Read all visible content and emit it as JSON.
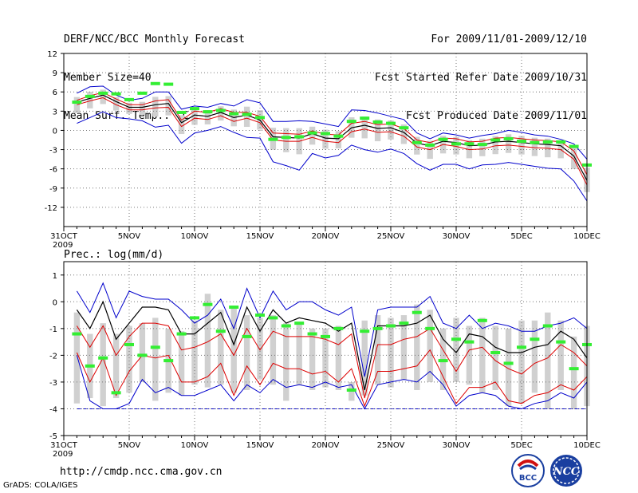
{
  "header": {
    "title": "DERF/NCC/BCC Monthly Forecast",
    "member_size": "Member Size=40",
    "variable": "Mean Surf. Temp.: °C",
    "forecast_period": "For 2009/11/01-2009/12/10",
    "started_refer_date": "Fcst Started Refer Date 2009/10/31",
    "produced_date": "Fcst Produced Date 2009/11/01"
  },
  "footer": {
    "url": "http://cmdp.ncc.cma.gov.cn",
    "software": "GrADS: COLA/IGES",
    "logo_left": "BCC",
    "logo_right": "NCC"
  },
  "colors": {
    "box": "#d0d0d0",
    "envelope": "#0000cc",
    "quartile": "#dd0000",
    "median": "#000000",
    "observed": "#33ee33",
    "grid": "#777777",
    "baseline": "#0000cc"
  },
  "chart_data": [
    {
      "type": "box-plume",
      "title": "Mean Surf. Temp.: °C",
      "ylabel": "°C",
      "ylim": [
        -15,
        12
      ],
      "yticks": [
        12,
        9,
        6,
        3,
        0,
        -3,
        -6,
        -9,
        -12
      ],
      "x_day_range": [
        0,
        40
      ],
      "xticks": [
        {
          "day": 0,
          "label": "31OCT",
          "sublabel": "2009"
        },
        {
          "day": 5,
          "label": "5NOV"
        },
        {
          "day": 10,
          "label": "10NOV"
        },
        {
          "day": 15,
          "label": "15NOV"
        },
        {
          "day": 20,
          "label": "20NOV"
        },
        {
          "day": 25,
          "label": "25NOV"
        },
        {
          "day": 30,
          "label": "30NOV"
        },
        {
          "day": 35,
          "label": "5DEC"
        },
        {
          "day": 40,
          "label": "10DEC"
        }
      ],
      "days": [
        1,
        2,
        3,
        4,
        5,
        6,
        7,
        8,
        9,
        10,
        11,
        12,
        13,
        14,
        15,
        16,
        17,
        18,
        19,
        20,
        21,
        22,
        23,
        24,
        25,
        26,
        27,
        28,
        29,
        30,
        31,
        32,
        33,
        34,
        35,
        36,
        37,
        38,
        39,
        40
      ],
      "series": [
        {
          "name": "ensemble max",
          "values": [
            5.8,
            6.8,
            6.9,
            5.5,
            4.7,
            5.0,
            6.0,
            6.0,
            3.3,
            3.8,
            3.6,
            4.2,
            3.8,
            4.8,
            4.3,
            1.4,
            1.4,
            1.5,
            1.4,
            1.0,
            0.6,
            3.2,
            3.1,
            2.7,
            2.2,
            1.7,
            -0.4,
            -1.3,
            -0.4,
            -0.7,
            -1.2,
            -0.8,
            -0.5,
            0.0,
            -0.3,
            -0.7,
            -0.9,
            -1.4,
            -2.1,
            -4.5
          ]
        },
        {
          "name": "upper quartile",
          "values": [
            4.7,
            5.4,
            5.9,
            4.9,
            4.0,
            4.0,
            4.6,
            4.8,
            1.6,
            3.0,
            2.8,
            3.4,
            2.8,
            2.8,
            2.2,
            -0.4,
            -0.5,
            -0.6,
            -0.1,
            -0.6,
            -0.7,
            1.1,
            1.4,
            0.9,
            1.0,
            0.3,
            -1.5,
            -1.9,
            -1.2,
            -1.3,
            -1.8,
            -1.7,
            -1.2,
            -1.1,
            -1.3,
            -1.5,
            -1.6,
            -1.8,
            -3.2,
            -6.9
          ]
        },
        {
          "name": "median",
          "values": [
            4.4,
            5.0,
            5.5,
            4.5,
            3.6,
            3.6,
            4.0,
            4.2,
            1.2,
            2.4,
            2.2,
            2.8,
            2.0,
            2.4,
            1.6,
            -1.0,
            -1.1,
            -1.2,
            -0.5,
            -1.2,
            -1.3,
            0.4,
            0.8,
            0.3,
            0.4,
            -0.3,
            -2.0,
            -2.4,
            -1.7,
            -1.9,
            -2.4,
            -2.3,
            -1.8,
            -1.7,
            -1.9,
            -2.1,
            -2.2,
            -2.4,
            -4.0,
            -7.8
          ]
        },
        {
          "name": "lower quartile",
          "values": [
            4.0,
            4.6,
            5.1,
            4.0,
            3.2,
            3.2,
            3.5,
            3.6,
            0.6,
            1.9,
            1.7,
            2.3,
            1.4,
            1.9,
            1.2,
            -1.5,
            -1.7,
            -1.7,
            -1.1,
            -1.7,
            -1.9,
            -0.2,
            0.2,
            -0.3,
            -0.2,
            -0.9,
            -2.6,
            -3.0,
            -2.2,
            -2.5,
            -3.0,
            -2.9,
            -2.4,
            -2.3,
            -2.5,
            -2.7,
            -2.8,
            -3.0,
            -4.5,
            -8.5
          ]
        },
        {
          "name": "ensemble min",
          "values": [
            1.1,
            2.0,
            2.9,
            2.0,
            1.8,
            1.5,
            0.5,
            0.8,
            -2.0,
            -0.4,
            0.0,
            0.6,
            -0.3,
            -1.1,
            -1.2,
            -4.9,
            -5.5,
            -6.2,
            -3.6,
            -4.3,
            -3.9,
            -2.3,
            -3.0,
            -3.4,
            -2.9,
            -3.6,
            -5.2,
            -6.2,
            -5.3,
            -5.3,
            -6.0,
            -5.4,
            -5.3,
            -5.0,
            -5.3,
            -5.6,
            -5.9,
            -6.0,
            -7.9,
            -11.0
          ]
        },
        {
          "name": "observed",
          "values": [
            4.4,
            5.3,
            5.8,
            5.7,
            4.8,
            5.8,
            7.3,
            7.2,
            2.8,
            3.4,
            2.9,
            3.1,
            2.6,
            2.5,
            2.0,
            -1.4,
            -1.1,
            -1.0,
            -0.4,
            -0.5,
            -0.9,
            1.4,
            1.9,
            1.3,
            1.1,
            0.4,
            -1.9,
            -2.3,
            -1.4,
            -2.1,
            -2.1,
            -2.2,
            -1.5,
            -1.3,
            -1.7,
            -1.9,
            -1.8,
            -1.8,
            -2.5,
            -5.4
          ]
        }
      ]
    },
    {
      "type": "box-plume",
      "title": "Prec.: log(mm/d)",
      "ylabel": "log(mm/d)",
      "ylim": [
        -5,
        1.5
      ],
      "yticks": [
        1,
        0,
        -1,
        -2,
        -3,
        -4,
        -5
      ],
      "x_day_range": [
        0,
        40
      ],
      "xticks": [
        {
          "day": 0,
          "label": "31OCT",
          "sublabel": "2009"
        },
        {
          "day": 5,
          "label": "5NOV"
        },
        {
          "day": 10,
          "label": "10NOV"
        },
        {
          "day": 15,
          "label": "15NOV"
        },
        {
          "day": 20,
          "label": "20NOV"
        },
        {
          "day": 25,
          "label": "25NOV"
        },
        {
          "day": 30,
          "label": "30NOV"
        },
        {
          "day": 35,
          "label": "5DEC"
        },
        {
          "day": 40,
          "label": "10DEC"
        }
      ],
      "days": [
        1,
        2,
        3,
        4,
        5,
        6,
        7,
        8,
        9,
        10,
        11,
        12,
        13,
        14,
        15,
        16,
        17,
        18,
        19,
        20,
        21,
        22,
        23,
        24,
        25,
        26,
        27,
        28,
        29,
        30,
        31,
        32,
        33,
        34,
        35,
        36,
        37,
        38,
        39,
        40
      ],
      "box_values": {
        "top": [
          -0.4,
          -1.2,
          -0.8,
          -1.2,
          -0.9,
          -0.8,
          -0.6,
          -1.0,
          -1.1,
          -0.7,
          0.3,
          -0.3,
          -0.2,
          -0.5,
          -0.6,
          -0.5,
          -0.8,
          -0.8,
          -1.0,
          -1.0,
          -0.9,
          -3.0,
          -0.7,
          -0.5,
          -0.6,
          -0.5,
          -0.1,
          -0.3,
          -1.0,
          -0.6,
          -0.9,
          -0.6,
          -0.9,
          -1.0,
          -0.7,
          -0.7,
          -0.4,
          -0.7,
          -1.3,
          -0.9
        ],
        "bottom": [
          -3.8,
          -3.6,
          -3.9,
          -3.6,
          -3.4,
          -3.0,
          -3.7,
          -3.4,
          -3.5,
          -3.1,
          -3.2,
          -3.1,
          -3.4,
          -3.3,
          -2.9,
          -3.1,
          -3.7,
          -3.1,
          -3.3,
          -3.2,
          -3.3,
          -3.7,
          -3.5,
          -3.1,
          -3.2,
          -2.9,
          -3.3,
          -3.0,
          -3.3,
          -3.0,
          -3.1,
          -3.4,
          -3.3,
          -3.9,
          -3.8,
          -3.4,
          -4.0,
          -3.3,
          -4.0,
          -3.9
        ]
      },
      "baseline": -4,
      "series": [
        {
          "name": "ensemble max",
          "values": [
            0.4,
            -0.4,
            0.7,
            -0.6,
            0.4,
            0.2,
            0.1,
            0.1,
            -0.3,
            -0.8,
            -0.5,
            0.1,
            -1.0,
            0.5,
            -0.6,
            0.4,
            -0.3,
            0.0,
            0.0,
            -0.3,
            -0.5,
            -0.2,
            -2.8,
            -0.3,
            -0.2,
            -0.2,
            -0.2,
            0.2,
            -0.8,
            -1.0,
            -0.5,
            -1.0,
            -0.8,
            -0.9,
            -1.1,
            -1.1,
            -0.9,
            -0.8,
            -0.6,
            -1.0
          ]
        },
        {
          "name": "median",
          "values": [
            -0.3,
            -1.0,
            0.0,
            -1.4,
            -0.8,
            -0.2,
            -0.2,
            -0.3,
            -1.2,
            -1.2,
            -0.8,
            -0.4,
            -1.6,
            -0.2,
            -1.1,
            -0.3,
            -0.8,
            -0.6,
            -0.7,
            -0.8,
            -1.1,
            -0.8,
            -3.3,
            -0.9,
            -0.9,
            -0.9,
            -0.8,
            -0.5,
            -1.4,
            -1.9,
            -1.2,
            -1.3,
            -1.7,
            -1.9,
            -1.9,
            -1.7,
            -1.6,
            -1.1,
            -1.4,
            -2.1
          ]
        },
        {
          "name": "upper quartile",
          "values": [
            -0.9,
            -1.7,
            -0.9,
            -2.0,
            -1.3,
            -0.8,
            -0.8,
            -0.9,
            -1.8,
            -1.7,
            -1.5,
            -1.2,
            -2.0,
            -1.0,
            -1.8,
            -1.1,
            -1.3,
            -1.3,
            -1.3,
            -1.4,
            -1.6,
            -1.2,
            -3.6,
            -1.6,
            -1.6,
            -1.4,
            -1.3,
            -1.0,
            -1.8,
            -2.6,
            -1.8,
            -1.7,
            -2.2,
            -2.5,
            -2.7,
            -2.3,
            -2.1,
            -1.6,
            -1.9,
            -2.4
          ]
        },
        {
          "name": "lower quartile",
          "values": [
            -1.9,
            -3.0,
            -2.1,
            -3.5,
            -2.6,
            -2.0,
            -2.1,
            -2.0,
            -3.0,
            -3.0,
            -2.8,
            -2.3,
            -3.5,
            -2.4,
            -3.1,
            -2.3,
            -2.5,
            -2.5,
            -2.7,
            -2.6,
            -3.0,
            -2.5,
            -3.9,
            -2.6,
            -2.6,
            -2.5,
            -2.4,
            -1.8,
            -2.8,
            -3.8,
            -3.2,
            -3.2,
            -3.0,
            -3.7,
            -3.8,
            -3.5,
            -3.4,
            -3.1,
            -3.3,
            -2.8
          ]
        },
        {
          "name": "ensemble min",
          "values": [
            -2.0,
            -3.7,
            -4.0,
            -4.0,
            -3.8,
            -2.9,
            -3.4,
            -3.2,
            -3.5,
            -3.5,
            -3.3,
            -3.1,
            -3.7,
            -3.1,
            -3.4,
            -2.9,
            -3.2,
            -3.1,
            -3.2,
            -3.0,
            -3.2,
            -3.1,
            -4.0,
            -3.1,
            -3.0,
            -2.9,
            -3.0,
            -2.6,
            -3.1,
            -3.9,
            -3.5,
            -3.4,
            -3.5,
            -3.9,
            -4.0,
            -3.8,
            -3.7,
            -3.4,
            -3.6,
            -3.0
          ]
        },
        {
          "name": "observed",
          "values": [
            -1.2,
            -2.4,
            -2.1,
            -3.4,
            -1.6,
            -2.0,
            -1.7,
            -2.2,
            -1.2,
            -0.6,
            -0.1,
            -1.1,
            -0.2,
            -1.3,
            -0.5,
            -0.6,
            -0.9,
            -0.8,
            -1.2,
            -1.3,
            -1.0,
            -3.3,
            -1.1,
            -1.0,
            -0.9,
            -0.8,
            -0.4,
            -1.0,
            -2.2,
            -1.4,
            -1.5,
            -0.7,
            -1.9,
            -2.3,
            -1.7,
            -1.4,
            -0.9,
            -1.5,
            -2.5,
            -1.6
          ]
        }
      ]
    }
  ]
}
